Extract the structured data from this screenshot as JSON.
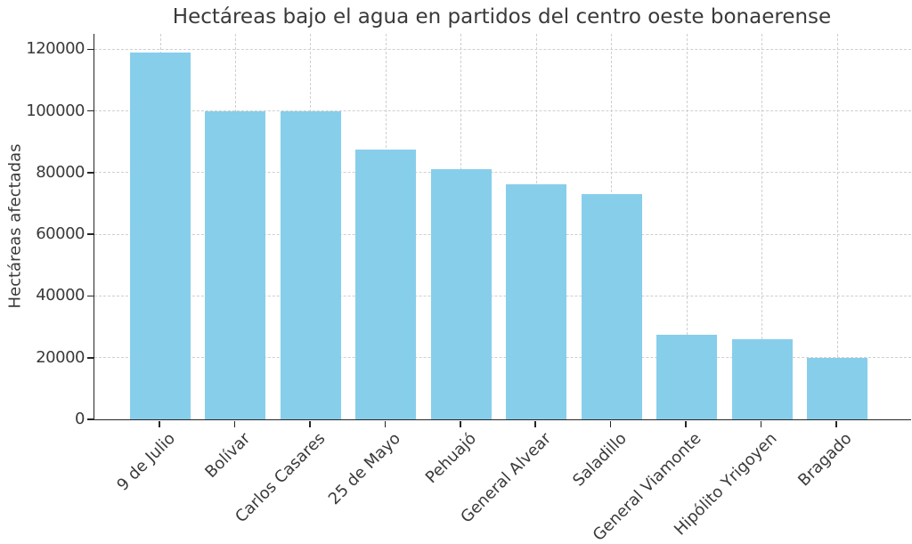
{
  "figure": {
    "background": "#ffffff"
  },
  "chart_data": {
    "type": "bar",
    "title": "Hectáreas bajo el agua en partidos del centro oeste bonaerense",
    "xlabel": "",
    "ylabel": "Hectáreas afectadas",
    "categories": [
      "9 de Julio",
      "Bolívar",
      "Carlos Casares",
      "25 de Mayo",
      "Pehuajó",
      "General Alvear",
      "Saladillo",
      "General Viamonte",
      "Hipólito Yrigoyen",
      "Bragado"
    ],
    "values": [
      119000,
      100000,
      100000,
      87500,
      81000,
      76300,
      73000,
      27300,
      26100,
      20000
    ],
    "ylim": [
      0,
      125000
    ],
    "yticks": [
      0,
      20000,
      40000,
      60000,
      80000,
      100000,
      120000
    ],
    "ytick_labels": [
      "0",
      "20000",
      "40000",
      "60000",
      "80000",
      "100000",
      "120000"
    ],
    "x_tick_rotation": 45,
    "grid": true,
    "legend": false,
    "bar_color": "#87CEEB",
    "grid_color": "#cfcfcf",
    "grid_style": "dashed",
    "axis_color": "#262626",
    "text_color": "#3a3a3a"
  }
}
